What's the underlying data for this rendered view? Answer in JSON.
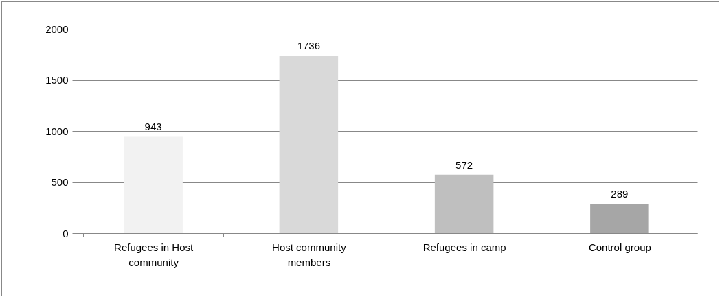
{
  "chart_data": {
    "type": "bar",
    "categories": [
      "Refugees in Host community",
      "Host community members",
      "Refugees in camp",
      "Control group"
    ],
    "values": [
      943,
      1736,
      572,
      289
    ],
    "colors": [
      "#f2f2f2",
      "#d9d9d9",
      "#bfbfbf",
      "#a6a6a6"
    ],
    "ylim": [
      0,
      2000
    ],
    "yticks": [
      0,
      500,
      1000,
      1500,
      2000
    ],
    "grid": "y",
    "data_labels": true
  }
}
